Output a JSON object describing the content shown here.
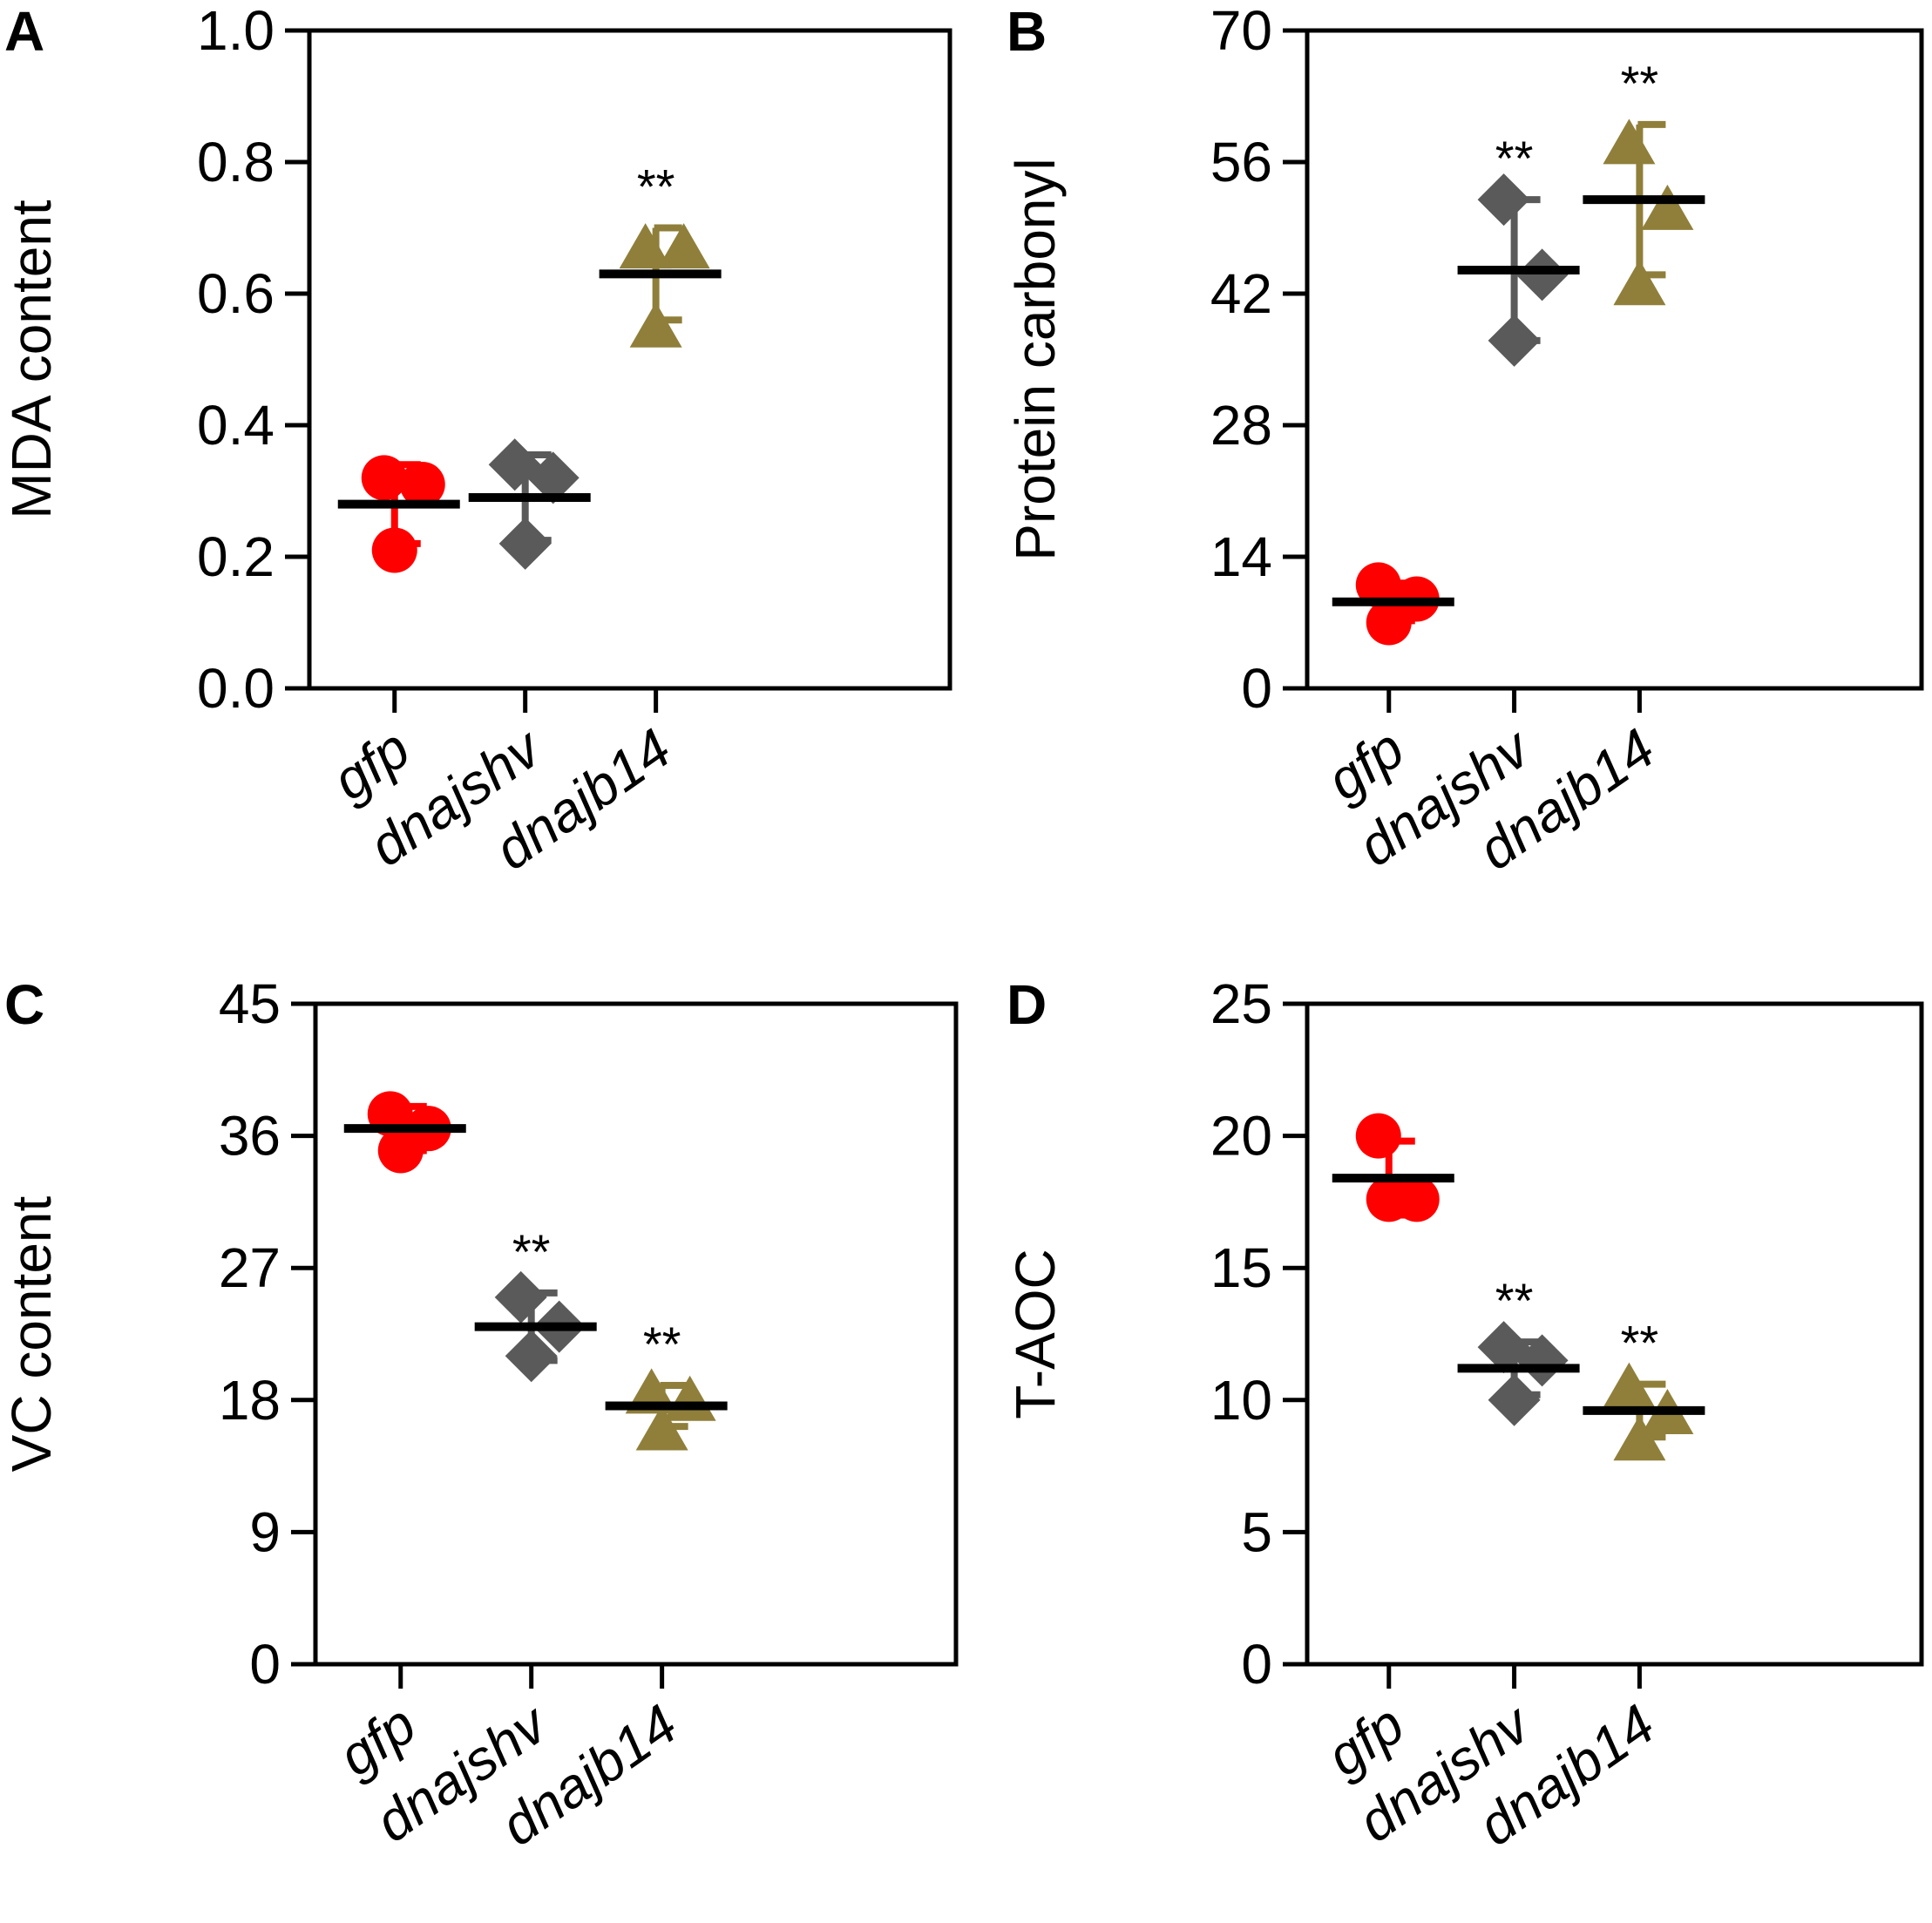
{
  "colors": {
    "gfp": "#ff0000",
    "dnajshv": "#5a5a5a",
    "dnajb14": "#8f7f3a",
    "mean": "#000000"
  },
  "categories": [
    "gfp",
    "dnajshv",
    "dnajb14"
  ],
  "chart_data": [
    {
      "type": "scatter",
      "panel": "A",
      "ylabel": "MDA content",
      "ylim": [
        0,
        1.0
      ],
      "yticks": [
        "0.0",
        "0.2",
        "0.4",
        "0.6",
        "0.8",
        "1.0"
      ],
      "categories": [
        "gfp",
        "dnajshv",
        "dnajb14"
      ],
      "series": [
        {
          "name": "gfp",
          "marker": "circle",
          "points": [
            0.32,
            0.31,
            0.21
          ],
          "mean": 0.28,
          "sd": 0.06,
          "sig": ""
        },
        {
          "name": "dnajshv",
          "marker": "diamond",
          "points": [
            0.34,
            0.32,
            0.22
          ],
          "mean": 0.29,
          "sd": 0.065,
          "sig": ""
        },
        {
          "name": "dnajb14",
          "marker": "triangle",
          "points": [
            0.67,
            0.67,
            0.55
          ],
          "mean": 0.63,
          "sd": 0.07,
          "sig": "**"
        }
      ]
    },
    {
      "type": "scatter",
      "panel": "B",
      "ylabel": "Protein carbonyl",
      "ylim": [
        0,
        70
      ],
      "yticks": [
        "0",
        "14",
        "28",
        "42",
        "56",
        "70"
      ],
      "categories": [
        "gfp",
        "dnajshv",
        "dnajb14"
      ],
      "series": [
        {
          "name": "gfp",
          "marker": "circle",
          "points": [
            11,
            9.5,
            7
          ],
          "mean": 9.2,
          "sd": 2.0,
          "sig": ""
        },
        {
          "name": "dnajshv",
          "marker": "diamond",
          "points": [
            52,
            44,
            37
          ],
          "mean": 44.5,
          "sd": 7.5,
          "sig": "**"
        },
        {
          "name": "dnajb14",
          "marker": "triangle",
          "points": [
            58,
            51,
            43
          ],
          "mean": 52,
          "sd": 8.0,
          "sig": "**"
        }
      ]
    },
    {
      "type": "scatter",
      "panel": "C",
      "ylabel": "VC content",
      "ylim": [
        0,
        45
      ],
      "yticks": [
        "0",
        "9",
        "18",
        "27",
        "36",
        "45"
      ],
      "categories": [
        "gfp",
        "dnajshv",
        "dnajb14"
      ],
      "series": [
        {
          "name": "gfp",
          "marker": "circle",
          "points": [
            37.5,
            36.5,
            35
          ],
          "mean": 36.5,
          "sd": 1.5,
          "sig": ""
        },
        {
          "name": "dnajshv",
          "marker": "diamond",
          "points": [
            25,
            23,
            21
          ],
          "mean": 23,
          "sd": 2.3,
          "sig": "**"
        },
        {
          "name": "dnajb14",
          "marker": "triangle",
          "points": [
            18.5,
            18,
            16
          ],
          "mean": 17.6,
          "sd": 1.4,
          "sig": "**"
        }
      ]
    },
    {
      "type": "scatter",
      "panel": "D",
      "ylabel": "T-AOC",
      "ylim": [
        0,
        25
      ],
      "yticks": [
        "0",
        "5",
        "10",
        "15",
        "20",
        "25"
      ],
      "categories": [
        "gfp",
        "dnajshv",
        "dnajb14"
      ],
      "series": [
        {
          "name": "gfp",
          "marker": "circle",
          "points": [
            20,
            17.6,
            17.6
          ],
          "mean": 18.4,
          "sd": 1.4,
          "sig": ""
        },
        {
          "name": "dnajshv",
          "marker": "diamond",
          "points": [
            12,
            11.5,
            10
          ],
          "mean": 11.2,
          "sd": 1.0,
          "sig": "**"
        },
        {
          "name": "dnajb14",
          "marker": "triangle",
          "points": [
            10.5,
            9.5,
            8.5
          ],
          "mean": 9.6,
          "sd": 1.0,
          "sig": "**"
        }
      ]
    }
  ]
}
